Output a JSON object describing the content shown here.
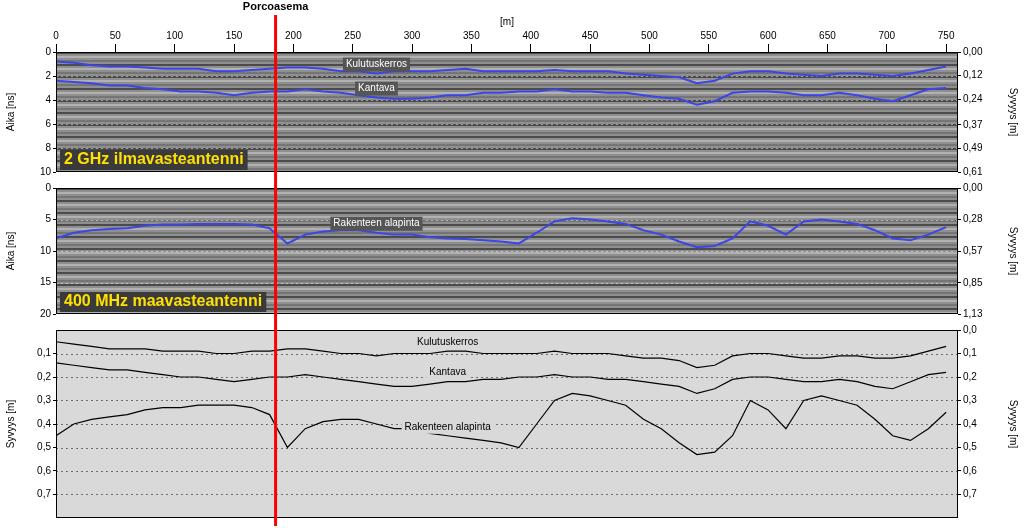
{
  "chart_data": [
    {
      "type": "line",
      "x": [
        0,
        15,
        30,
        45,
        60,
        75,
        90,
        105,
        120,
        135,
        150,
        165,
        180,
        195,
        210,
        225,
        240,
        255,
        270,
        285,
        300,
        315,
        330,
        345,
        360,
        375,
        390,
        405,
        420,
        435,
        450,
        465,
        480,
        495,
        510,
        525,
        540,
        555,
        570,
        585,
        600,
        615,
        630,
        645,
        660,
        675,
        690,
        705,
        720,
        735,
        750
      ],
      "xlim": [
        0,
        760
      ],
      "xticks": [
        0,
        50,
        100,
        150,
        200,
        250,
        300,
        350,
        400,
        450,
        500,
        550,
        600,
        650,
        700,
        750
      ],
      "x_label": "[m]",
      "y_label": "Aika [ns]",
      "ylim": [
        0,
        10
      ],
      "yticks": [
        0,
        2,
        4,
        6,
        8,
        10
      ],
      "y2_label": "Syvyys [m]",
      "y2lim": [
        0,
        0.61
      ],
      "y2ticks": [
        {
          "value": 0,
          "label": "0,00"
        },
        {
          "value": 0.12,
          "label": "0,12"
        },
        {
          "value": 0.24,
          "label": "0,24"
        },
        {
          "value": 0.37,
          "label": "0,37"
        },
        {
          "value": 0.49,
          "label": "0,49"
        },
        {
          "value": 0.61,
          "label": "0,61"
        }
      ],
      "grid": true,
      "annotations": [
        {
          "text": "Porcoasema",
          "x": 185,
          "color": "#ff0000"
        },
        {
          "text": "2 GHz ilmavasteantenni",
          "color": "#ffe000"
        }
      ],
      "series": [
        {
          "name": "Kulutuskerros",
          "color": "#3c46e6",
          "values": [
            0.8,
            0.9,
            1.1,
            1.2,
            1.2,
            1.3,
            1.4,
            1.4,
            1.4,
            1.6,
            1.6,
            1.5,
            1.4,
            1.3,
            1.3,
            1.4,
            1.6,
            1.6,
            1.8,
            1.6,
            1.6,
            1.6,
            1.5,
            1.4,
            1.6,
            1.6,
            1.6,
            1.6,
            1.5,
            1.6,
            1.6,
            1.6,
            1.8,
            1.9,
            2.0,
            2.1,
            2.6,
            2.4,
            1.8,
            1.6,
            1.6,
            1.8,
            1.9,
            2.0,
            1.8,
            1.8,
            1.9,
            2.0,
            1.8,
            1.5,
            1.2
          ]
        },
        {
          "name": "Kantava",
          "color": "#3c46e6",
          "values": [
            2.4,
            2.5,
            2.6,
            2.8,
            2.8,
            3.0,
            3.1,
            3.3,
            3.3,
            3.4,
            3.6,
            3.4,
            3.3,
            3.3,
            3.1,
            3.3,
            3.4,
            3.6,
            3.8,
            3.9,
            3.9,
            3.8,
            3.6,
            3.6,
            3.4,
            3.4,
            3.3,
            3.3,
            3.1,
            3.3,
            3.3,
            3.4,
            3.4,
            3.6,
            3.8,
            3.9,
            4.4,
            4.1,
            3.4,
            3.3,
            3.3,
            3.4,
            3.6,
            3.6,
            3.4,
            3.6,
            3.9,
            4.1,
            3.6,
            3.1,
            3.0
          ]
        }
      ]
    },
    {
      "type": "line",
      "x": [
        0,
        15,
        30,
        45,
        60,
        75,
        90,
        105,
        120,
        135,
        150,
        165,
        180,
        195,
        210,
        225,
        240,
        255,
        270,
        285,
        300,
        315,
        330,
        345,
        360,
        375,
        390,
        405,
        420,
        435,
        450,
        465,
        480,
        495,
        510,
        525,
        540,
        555,
        570,
        585,
        600,
        615,
        630,
        645,
        660,
        675,
        690,
        705,
        720,
        735,
        750
      ],
      "xlim": [
        0,
        760
      ],
      "tick_labels": "y",
      "y_label": "Aika [ns]",
      "ylim": [
        0,
        20
      ],
      "yticks": [
        0,
        5,
        10,
        15,
        20
      ],
      "y2_label": "Syvyys [m]",
      "y2lim": [
        0,
        1.13
      ],
      "y2ticks": [
        {
          "value": 0,
          "label": "0,00"
        },
        {
          "value": 0.28,
          "label": "0,28"
        },
        {
          "value": 0.57,
          "label": "0,57"
        },
        {
          "value": 0.85,
          "label": "0,85"
        },
        {
          "value": 1.13,
          "label": "1,13"
        }
      ],
      "grid": true,
      "annotations": [
        {
          "x": 185,
          "color": "#ff0000"
        },
        {
          "text": "400 MHz maavasteantenni",
          "color": "#ffe000"
        }
      ],
      "series": [
        {
          "name": "Rakenteen alapinta",
          "color": "#3c46e6",
          "values": [
            8.0,
            7.1,
            6.7,
            6.5,
            6.4,
            6.0,
            5.8,
            5.8,
            5.7,
            5.7,
            5.7,
            5.8,
            6.4,
            8.8,
            7.4,
            6.9,
            6.7,
            6.7,
            7.1,
            7.4,
            7.4,
            7.8,
            8.0,
            8.1,
            8.3,
            8.5,
            8.8,
            7.1,
            5.3,
            4.8,
            5.0,
            5.3,
            5.7,
            6.7,
            7.4,
            8.5,
            9.4,
            9.2,
            8.0,
            5.3,
            6.0,
            7.4,
            5.3,
            5.0,
            5.3,
            5.7,
            6.7,
            8.0,
            8.3,
            7.4,
            6.2
          ]
        }
      ]
    },
    {
      "type": "line",
      "x": [
        0,
        15,
        30,
        45,
        60,
        75,
        90,
        105,
        120,
        135,
        150,
        165,
        180,
        195,
        210,
        225,
        240,
        255,
        270,
        285,
        300,
        315,
        330,
        345,
        360,
        375,
        390,
        405,
        420,
        435,
        450,
        465,
        480,
        495,
        510,
        525,
        540,
        555,
        570,
        585,
        600,
        615,
        630,
        645,
        660,
        675,
        690,
        705,
        720,
        735,
        750
      ],
      "xlim": [
        0,
        760
      ],
      "tick_labels": "y",
      "y_label": "Syvyys [m]",
      "ylim": [
        0,
        0.8
      ],
      "yticks": [
        {
          "value": 0.1,
          "label": "0,1"
        },
        {
          "value": 0.2,
          "label": "0,2"
        },
        {
          "value": 0.3,
          "label": "0,3"
        },
        {
          "value": 0.4,
          "label": "0,4"
        },
        {
          "value": 0.5,
          "label": "0,5"
        },
        {
          "value": 0.6,
          "label": "0,6"
        },
        {
          "value": 0.7,
          "label": "0,7"
        }
      ],
      "y2_label": "Syvyys [m]",
      "y2lim": [
        0,
        0.8
      ],
      "y2ticks": [
        {
          "value": 0,
          "label": "0,0"
        },
        {
          "value": 0.1,
          "label": "0,1"
        },
        {
          "value": 0.2,
          "label": "0,2"
        },
        {
          "value": 0.3,
          "label": "0,3"
        },
        {
          "value": 0.4,
          "label": "0,4"
        },
        {
          "value": 0.5,
          "label": "0,5"
        },
        {
          "value": 0.6,
          "label": "0,6"
        },
        {
          "value": 0.7,
          "label": "0,7"
        }
      ],
      "grid": true,
      "annotations": [
        {
          "x": 185,
          "color": "#ff0000"
        }
      ],
      "series": [
        {
          "name": "Kulutuskerros",
          "color": "#000000",
          "values": [
            0.05,
            0.06,
            0.07,
            0.08,
            0.08,
            0.08,
            0.09,
            0.09,
            0.09,
            0.1,
            0.1,
            0.09,
            0.09,
            0.08,
            0.08,
            0.09,
            0.1,
            0.1,
            0.11,
            0.1,
            0.1,
            0.1,
            0.09,
            0.09,
            0.1,
            0.1,
            0.1,
            0.1,
            0.09,
            0.1,
            0.1,
            0.1,
            0.11,
            0.12,
            0.12,
            0.13,
            0.16,
            0.15,
            0.11,
            0.1,
            0.1,
            0.11,
            0.12,
            0.12,
            0.11,
            0.11,
            0.12,
            0.12,
            0.11,
            0.09,
            0.07
          ]
        },
        {
          "name": "Kantava",
          "color": "#000000",
          "values": [
            0.14,
            0.15,
            0.16,
            0.17,
            0.17,
            0.18,
            0.19,
            0.2,
            0.2,
            0.21,
            0.22,
            0.21,
            0.2,
            0.2,
            0.19,
            0.2,
            0.21,
            0.22,
            0.23,
            0.24,
            0.24,
            0.23,
            0.22,
            0.22,
            0.21,
            0.21,
            0.2,
            0.2,
            0.19,
            0.2,
            0.2,
            0.21,
            0.21,
            0.22,
            0.23,
            0.24,
            0.27,
            0.25,
            0.21,
            0.2,
            0.2,
            0.21,
            0.22,
            0.22,
            0.21,
            0.22,
            0.24,
            0.25,
            0.22,
            0.19,
            0.18
          ]
        },
        {
          "name": "Rakenteen alapinta",
          "color": "#000000",
          "values": [
            0.45,
            0.4,
            0.38,
            0.37,
            0.36,
            0.34,
            0.33,
            0.33,
            0.32,
            0.32,
            0.32,
            0.33,
            0.36,
            0.5,
            0.42,
            0.39,
            0.38,
            0.38,
            0.4,
            0.42,
            0.42,
            0.44,
            0.45,
            0.46,
            0.47,
            0.48,
            0.5,
            0.4,
            0.3,
            0.27,
            0.28,
            0.3,
            0.32,
            0.38,
            0.42,
            0.48,
            0.53,
            0.52,
            0.45,
            0.3,
            0.34,
            0.42,
            0.3,
            0.28,
            0.3,
            0.32,
            0.38,
            0.45,
            0.47,
            0.42,
            0.35
          ]
        }
      ]
    }
  ]
}
